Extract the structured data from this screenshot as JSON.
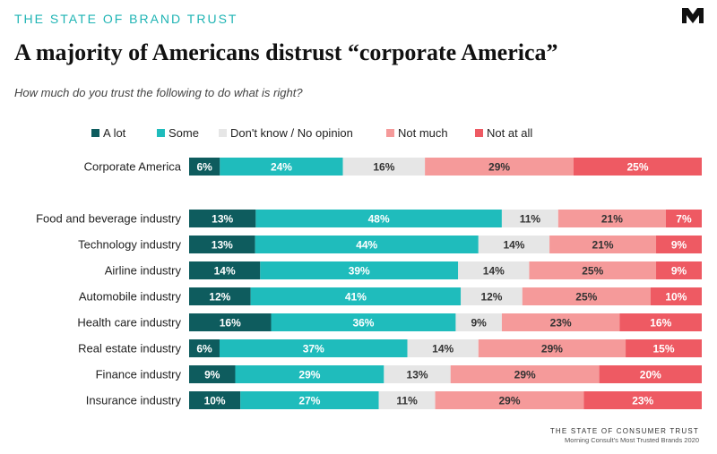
{
  "header": {
    "kicker": "THE STATE OF BRAND TRUST",
    "title": "A majority of Americans distrust “corporate America”",
    "subtitle": "How much do you trust the following to do what is right?"
  },
  "colors": {
    "a_lot": "#0e5c5e",
    "some": "#1fbcbc",
    "dont_know": "#e6e6e6",
    "not_much": "#f59a9a",
    "not_at_all": "#ee5a63",
    "kicker": "#1fb4b4"
  },
  "footer": {
    "line1": "THE STATE OF CONSUMER TRUST",
    "line2": "Morning Consult’s Most Trusted Brands 2020"
  },
  "chart_data": {
    "type": "bar",
    "orientation": "horizontal",
    "stacked": true,
    "normalized": true,
    "title": "A majority of Americans distrust “corporate America”",
    "subtitle": "How much do you trust the following to do what is right?",
    "legend_position": "top",
    "categories": [
      "Corporate America",
      "Food and beverage industry",
      "Technology industry",
      "Airline industry",
      "Automobile industry",
      "Health care industry",
      "Real estate industry",
      "Finance industry",
      "Insurance industry"
    ],
    "series": [
      {
        "name": "A lot",
        "color": "#0e5c5e",
        "values": [
          6,
          13,
          13,
          14,
          12,
          16,
          6,
          9,
          10
        ]
      },
      {
        "name": "Some",
        "color": "#1fbcbc",
        "values": [
          24,
          48,
          44,
          39,
          41,
          36,
          37,
          29,
          27
        ]
      },
      {
        "name": "Don't know / No opinion",
        "color": "#e6e6e6",
        "values": [
          16,
          11,
          14,
          14,
          12,
          9,
          14,
          13,
          11
        ]
      },
      {
        "name": "Not much",
        "color": "#f59a9a",
        "values": [
          29,
          21,
          21,
          25,
          25,
          23,
          29,
          29,
          29
        ]
      },
      {
        "name": "Not at all",
        "color": "#ee5a63",
        "values": [
          25,
          7,
          9,
          9,
          10,
          16,
          15,
          20,
          23
        ]
      }
    ]
  }
}
